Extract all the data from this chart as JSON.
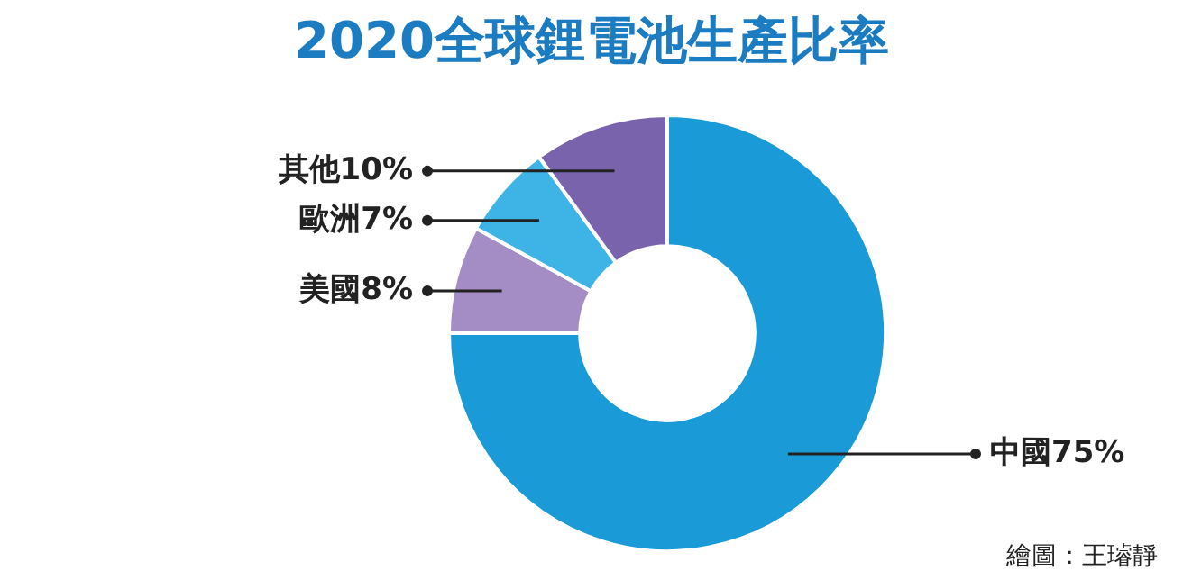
{
  "chart_data": {
    "type": "donut",
    "title": "2020全球鋰電池生產比率",
    "categories": [
      "中國",
      "美國",
      "歐洲",
      "其他"
    ],
    "values": [
      75,
      8,
      7,
      10
    ],
    "value_labels": [
      "75%",
      "8%",
      "7%",
      "10%"
    ],
    "colors": [
      "#1a9ad6",
      "#a48cc4",
      "#3db4e5",
      "#7a63ad"
    ],
    "legend": false,
    "annotations": [
      "繪圖：王璿靜"
    ]
  }
}
